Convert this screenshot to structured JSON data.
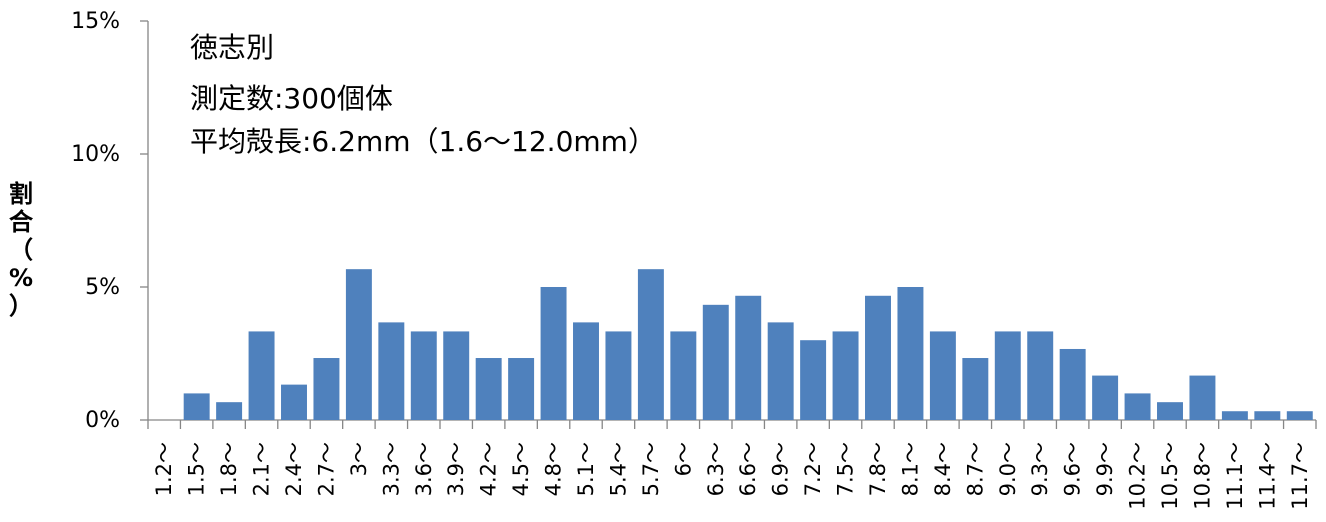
{
  "chart_data": {
    "type": "bar",
    "categories": [
      "1.2～",
      "1.5～",
      "1.8～",
      "2.1～",
      "2.4～",
      "2.7～",
      "3～",
      "3.3～",
      "3.6～",
      "3.9～",
      "4.2～",
      "4.5～",
      "4.8～",
      "5.1～",
      "5.4～",
      "5.7～",
      "6～",
      "6.3～",
      "6.6～",
      "6.9～",
      "7.2～",
      "7.5～",
      "7.8～",
      "8.1～",
      "8.4～",
      "8.7～",
      "9.0～",
      "9.3～",
      "9.6～",
      "9.9～",
      "10.2～",
      "10.5～",
      "10.8～",
      "11.1～",
      "11.4～",
      "11.7～"
    ],
    "values": [
      0,
      1.0,
      0.67,
      3.33,
      1.33,
      2.33,
      5.67,
      3.67,
      3.33,
      3.33,
      2.33,
      2.33,
      5.0,
      3.67,
      3.33,
      5.67,
      3.33,
      4.33,
      4.67,
      3.67,
      3.0,
      3.33,
      4.67,
      5.0,
      3.33,
      2.33,
      3.33,
      3.33,
      2.67,
      1.67,
      1.0,
      0.67,
      1.67,
      0.33,
      0.33,
      0.33
    ],
    "ylabel_chars": [
      "割",
      "合",
      "（",
      "%",
      "）"
    ],
    "yticks": [
      "0%",
      "5%",
      "10%",
      "15%"
    ],
    "ylim": [
      0,
      15
    ],
    "unit": "%",
    "bar_color": "#4f81bd",
    "grid": false,
    "annotations": [
      "徳志別",
      "測定数:300個体",
      "平均殻長:6.2mm（1.6～12.0mm）"
    ]
  }
}
